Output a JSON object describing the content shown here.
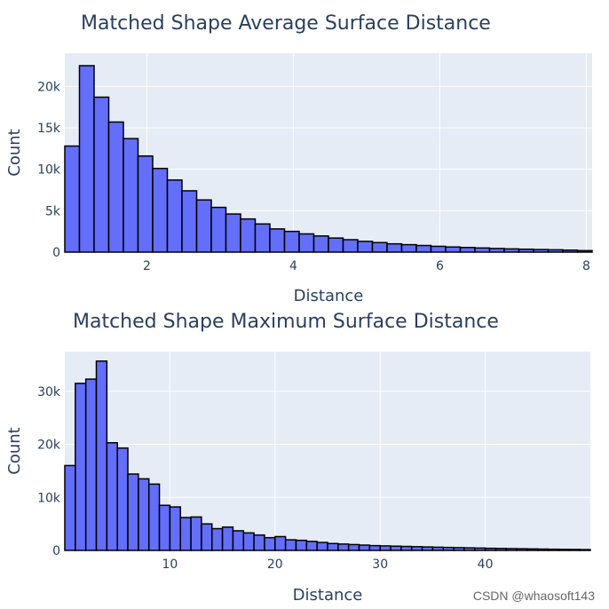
{
  "watermark": "CSDN @whaosoft143",
  "chart_data": [
    {
      "type": "bar",
      "title": "Matched Shape Average Surface Distance",
      "xlabel": "Distance",
      "ylabel": "Count",
      "xlim": [
        0.88,
        8.08
      ],
      "ylim": [
        0,
        24000
      ],
      "xticks": [
        2,
        4,
        6,
        8
      ],
      "xtick_labels": [
        "2",
        "4",
        "6",
        "8"
      ],
      "yticks": [
        0,
        5000,
        10000,
        15000,
        20000
      ],
      "ytick_labels": [
        "0",
        "5k",
        "10k",
        "15k",
        "20k"
      ],
      "grid": true,
      "legend": "none",
      "bar_color": "#636efa",
      "edge_color": "#000000",
      "bins": [
        [
          0.88,
          1.08,
          12800
        ],
        [
          1.08,
          1.28,
          22500
        ],
        [
          1.28,
          1.48,
          18700
        ],
        [
          1.48,
          1.68,
          15700
        ],
        [
          1.68,
          1.88,
          13700
        ],
        [
          1.88,
          2.08,
          11600
        ],
        [
          2.08,
          2.28,
          10100
        ],
        [
          2.28,
          2.48,
          8700
        ],
        [
          2.48,
          2.68,
          7400
        ],
        [
          2.68,
          2.88,
          6300
        ],
        [
          2.88,
          3.08,
          5400
        ],
        [
          3.08,
          3.28,
          4600
        ],
        [
          3.28,
          3.48,
          4000
        ],
        [
          3.48,
          3.68,
          3400
        ],
        [
          3.68,
          3.88,
          2800
        ],
        [
          3.88,
          4.08,
          2500
        ],
        [
          4.08,
          4.28,
          2200
        ],
        [
          4.28,
          4.48,
          1950
        ],
        [
          4.48,
          4.68,
          1700
        ],
        [
          4.68,
          4.88,
          1500
        ],
        [
          4.88,
          5.08,
          1300
        ],
        [
          5.08,
          5.28,
          1150
        ],
        [
          5.28,
          5.48,
          1000
        ],
        [
          5.48,
          5.68,
          900
        ],
        [
          5.68,
          5.88,
          800
        ],
        [
          5.88,
          6.08,
          700
        ],
        [
          6.08,
          6.28,
          620
        ],
        [
          6.28,
          6.48,
          560
        ],
        [
          6.48,
          6.68,
          500
        ],
        [
          6.68,
          6.88,
          440
        ],
        [
          6.88,
          7.08,
          390
        ],
        [
          7.08,
          7.28,
          350
        ],
        [
          7.28,
          7.48,
          310
        ],
        [
          7.48,
          7.68,
          280
        ],
        [
          7.68,
          7.88,
          240
        ],
        [
          7.88,
          8.08,
          180
        ]
      ]
    },
    {
      "type": "bar",
      "title": "Matched Shape Maximum Surface Distance",
      "xlabel": "Distance",
      "ylabel": "Count",
      "xlim": [
        0,
        50
      ],
      "ylim": [
        0,
        37500
      ],
      "xticks": [
        10,
        20,
        30,
        40
      ],
      "xtick_labels": [
        "10",
        "20",
        "30",
        "40"
      ],
      "yticks": [
        0,
        10000,
        20000,
        30000
      ],
      "ytick_labels": [
        "0",
        "10k",
        "20k",
        "30k"
      ],
      "grid": true,
      "legend": "none",
      "bar_color": "#636efa",
      "edge_color": "#000000",
      "bins": [
        [
          0,
          1,
          16000
        ],
        [
          1,
          2,
          31500
        ],
        [
          2,
          3,
          32300
        ],
        [
          3,
          4,
          35700
        ],
        [
          4,
          5,
          20300
        ],
        [
          5,
          6,
          19300
        ],
        [
          6,
          7,
          14400
        ],
        [
          7,
          8,
          13500
        ],
        [
          8,
          9,
          12500
        ],
        [
          9,
          10,
          8500
        ],
        [
          10,
          11,
          8200
        ],
        [
          11,
          12,
          6200
        ],
        [
          12,
          13,
          6300
        ],
        [
          13,
          14,
          5000
        ],
        [
          14,
          15,
          4100
        ],
        [
          15,
          16,
          4400
        ],
        [
          16,
          17,
          3700
        ],
        [
          17,
          18,
          3300
        ],
        [
          18,
          19,
          2900
        ],
        [
          19,
          20,
          2400
        ],
        [
          20,
          21,
          2600
        ],
        [
          21,
          22,
          2000
        ],
        [
          22,
          23,
          1900
        ],
        [
          23,
          24,
          1700
        ],
        [
          24,
          25,
          1500
        ],
        [
          25,
          26,
          1300
        ],
        [
          26,
          27,
          1200
        ],
        [
          27,
          28,
          1100
        ],
        [
          28,
          29,
          1000
        ],
        [
          29,
          30,
          900
        ],
        [
          30,
          31,
          850
        ],
        [
          31,
          32,
          800
        ],
        [
          32,
          33,
          750
        ],
        [
          33,
          34,
          700
        ],
        [
          34,
          35,
          650
        ],
        [
          35,
          36,
          600
        ],
        [
          36,
          37,
          560
        ],
        [
          37,
          38,
          520
        ],
        [
          38,
          39,
          480
        ],
        [
          39,
          40,
          440
        ],
        [
          40,
          41,
          400
        ],
        [
          41,
          42,
          370
        ],
        [
          42,
          43,
          340
        ],
        [
          43,
          44,
          310
        ],
        [
          44,
          45,
          280
        ],
        [
          45,
          46,
          250
        ],
        [
          46,
          47,
          220
        ],
        [
          47,
          48,
          200
        ],
        [
          48,
          49,
          180
        ],
        [
          49,
          50,
          150
        ]
      ]
    }
  ]
}
